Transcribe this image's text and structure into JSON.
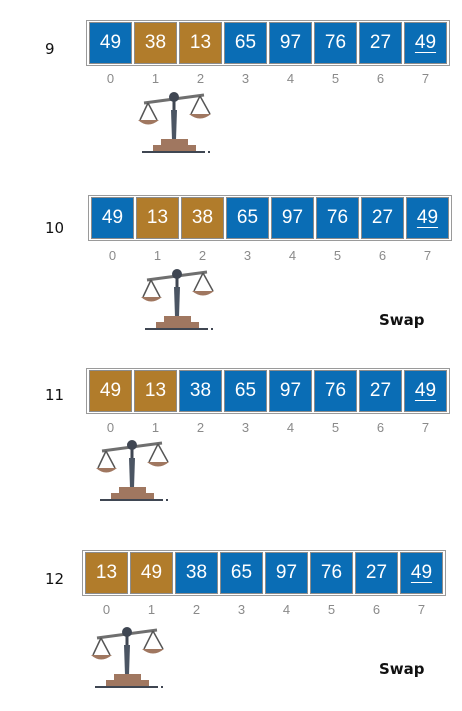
{
  "steps": [
    {
      "label": "9",
      "cells": [
        {
          "value": "49",
          "color": "#0a6db5",
          "underline": false
        },
        {
          "value": "38",
          "color": "#b17c2b",
          "underline": false
        },
        {
          "value": "13",
          "color": "#b17c2b",
          "underline": false
        },
        {
          "value": "65",
          "color": "#0a6db5",
          "underline": false
        },
        {
          "value": "97",
          "color": "#0a6db5",
          "underline": false
        },
        {
          "value": "76",
          "color": "#0a6db5",
          "underline": false
        },
        {
          "value": "27",
          "color": "#0a6db5",
          "underline": false
        },
        {
          "value": "49",
          "color": "#0a6db5",
          "underline": true
        }
      ],
      "indices": [
        "0",
        "1",
        "2",
        "3",
        "4",
        "5",
        "6",
        "7"
      ],
      "scale_icon": "balance-scale-icon",
      "action": ""
    },
    {
      "label": "10",
      "cells": [
        {
          "value": "49",
          "color": "#0a6db5",
          "underline": false
        },
        {
          "value": "13",
          "color": "#b17c2b",
          "underline": false
        },
        {
          "value": "38",
          "color": "#b17c2b",
          "underline": false
        },
        {
          "value": "65",
          "color": "#0a6db5",
          "underline": false
        },
        {
          "value": "97",
          "color": "#0a6db5",
          "underline": false
        },
        {
          "value": "76",
          "color": "#0a6db5",
          "underline": false
        },
        {
          "value": "27",
          "color": "#0a6db5",
          "underline": false
        },
        {
          "value": "49",
          "color": "#0a6db5",
          "underline": true
        }
      ],
      "indices": [
        "0",
        "1",
        "2",
        "3",
        "4",
        "5",
        "6",
        "7"
      ],
      "scale_icon": "balance-scale-icon",
      "action": "Swap"
    },
    {
      "label": "11",
      "cells": [
        {
          "value": "49",
          "color": "#b17c2b",
          "underline": false
        },
        {
          "value": "13",
          "color": "#b17c2b",
          "underline": false
        },
        {
          "value": "38",
          "color": "#0a6db5",
          "underline": false
        },
        {
          "value": "65",
          "color": "#0a6db5",
          "underline": false
        },
        {
          "value": "97",
          "color": "#0a6db5",
          "underline": false
        },
        {
          "value": "76",
          "color": "#0a6db5",
          "underline": false
        },
        {
          "value": "27",
          "color": "#0a6db5",
          "underline": false
        },
        {
          "value": "49",
          "color": "#0a6db5",
          "underline": true
        }
      ],
      "indices": [
        "0",
        "1",
        "2",
        "3",
        "4",
        "5",
        "6",
        "7"
      ],
      "scale_icon": "balance-scale-icon",
      "action": ""
    },
    {
      "label": "12",
      "cells": [
        {
          "value": "13",
          "color": "#b17c2b",
          "underline": false
        },
        {
          "value": "49",
          "color": "#b17c2b",
          "underline": false
        },
        {
          "value": "38",
          "color": "#0a6db5",
          "underline": false
        },
        {
          "value": "65",
          "color": "#0a6db5",
          "underline": false
        },
        {
          "value": "97",
          "color": "#0a6db5",
          "underline": false
        },
        {
          "value": "76",
          "color": "#0a6db5",
          "underline": false
        },
        {
          "value": "27",
          "color": "#0a6db5",
          "underline": false
        },
        {
          "value": "49",
          "color": "#0a6db5",
          "underline": true
        }
      ],
      "indices": [
        "0",
        "1",
        "2",
        "3",
        "4",
        "5",
        "6",
        "7"
      ],
      "scale_icon": "balance-scale-icon",
      "action": "Swap"
    }
  ]
}
